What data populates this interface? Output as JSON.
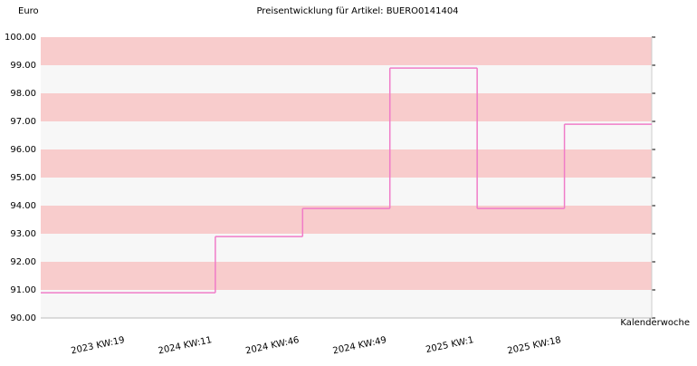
{
  "chart_data": {
    "type": "step",
    "title": "Preisentwicklung für Artikel: BUERO0141404",
    "y_label": "Euro",
    "x_label": "Kalenderwoche",
    "categories": [
      "2023 KW:19",
      "2024 KW:11",
      "2024 KW:46",
      "2024 KW:49",
      "2025 KW:1",
      "2025 KW:18"
    ],
    "series": [
      {
        "color": "#f07cc8",
        "values": [
          90.9,
          92.9,
          93.9,
          98.9,
          93.9,
          96.9
        ]
      }
    ],
    "ylim": [
      90,
      100
    ],
    "yticks": [
      {
        "value": 90,
        "label": "90.00"
      },
      {
        "value": 91,
        "label": "91.00"
      },
      {
        "value": 92,
        "label": "92.00"
      },
      {
        "value": 93,
        "label": "93.00"
      },
      {
        "value": 94,
        "label": "94.00"
      },
      {
        "value": 95,
        "label": "95.00"
      },
      {
        "value": 96,
        "label": "96.00"
      },
      {
        "value": 97,
        "label": "97.00"
      },
      {
        "value": 98,
        "label": "98.00"
      },
      {
        "value": 99,
        "label": "99.00"
      },
      {
        "value": 100,
        "label": "100.00"
      }
    ],
    "band_colors": [
      "#f7f7f7",
      "#f8cccc"
    ]
  }
}
